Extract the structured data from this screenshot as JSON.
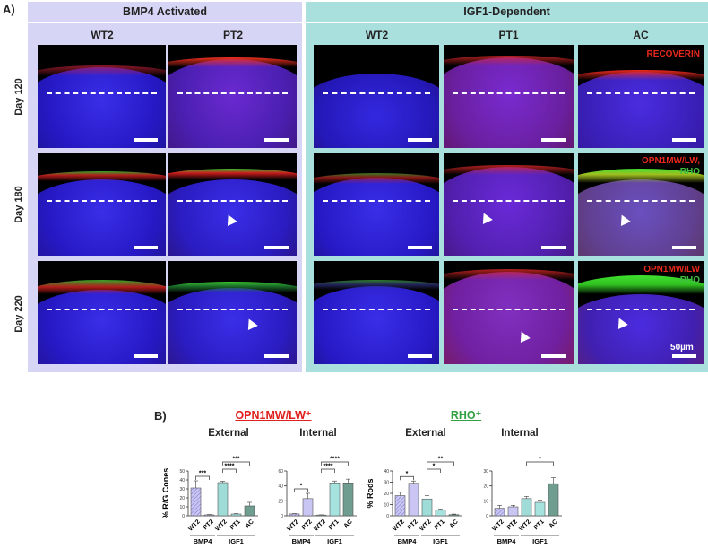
{
  "panel_a": {
    "label": "A)",
    "groups": [
      {
        "name": "BMP4 Activated",
        "columns": [
          "WT2",
          "PT2"
        ]
      },
      {
        "name": "IGF1-Dependent",
        "columns": [
          "WT2",
          "PT1",
          "AC"
        ]
      }
    ],
    "rows": [
      "Day 120",
      "Day 180",
      "Day 220"
    ],
    "markers": {
      "row1": "RECOVERIN",
      "row2_red": "OPN1MW/LW,",
      "row2_green": "RHO",
      "row3_red": "OPN1MW/LW",
      "row3_green": "RHO"
    },
    "scale_bar": "50µm",
    "colors": {
      "bmp4_bg": "#d6d5f5",
      "igf1_bg": "#a9dfdc",
      "nuclei": "#2a1fd0",
      "recoverin": "#e0201c",
      "rho": "#3fd12a"
    }
  },
  "panel_b": {
    "label": "B)",
    "titles": {
      "opn": "OPN1MW/LW⁺",
      "rho": "RHO⁺"
    },
    "subtitles": {
      "external": "External",
      "internal": "Internal"
    },
    "ylabels": {
      "cones": "% R/G Cones",
      "rods": "% Rods"
    },
    "group_labels": {
      "bmp4": "BMP4",
      "igf1": "IGF1"
    }
  },
  "chart_data": [
    {
      "type": "bar",
      "title": "OPN1MW/LW+ External",
      "ylabel": "% R/G Cones",
      "ylim": [
        0,
        50
      ],
      "yticks": [
        0,
        10,
        20,
        30,
        40,
        50
      ],
      "categories": [
        "WT2",
        "PT2",
        "WT2",
        "PT1",
        "AC"
      ],
      "groups": [
        {
          "name": "BMP4",
          "members": [
            0,
            1
          ]
        },
        {
          "name": "IGF1",
          "members": [
            2,
            3,
            4
          ]
        }
      ],
      "values": [
        31,
        1,
        37,
        2,
        11
      ],
      "errors": [
        8,
        0.5,
        1.5,
        0.5,
        4
      ],
      "significance": [
        {
          "from": 0,
          "to": 1,
          "label": "***"
        },
        {
          "from": 2,
          "to": 3,
          "label": "****"
        },
        {
          "from": 2,
          "to": 4,
          "label": "***"
        }
      ]
    },
    {
      "type": "bar",
      "title": "OPN1MW/LW+ Internal",
      "ylabel": "",
      "ylim": [
        0,
        60
      ],
      "yticks": [
        0,
        20,
        40,
        60
      ],
      "categories": [
        "WT2",
        "PT2",
        "WT2",
        "PT1",
        "AC"
      ],
      "groups": [
        {
          "name": "BMP4",
          "members": [
            0,
            1
          ]
        },
        {
          "name": "IGF1",
          "members": [
            2,
            3,
            4
          ]
        }
      ],
      "values": [
        2.5,
        23,
        1,
        44,
        44
      ],
      "errors": [
        0.5,
        7,
        0.3,
        2.5,
        5
      ],
      "significance": [
        {
          "from": 0,
          "to": 1,
          "label": "*"
        },
        {
          "from": 2,
          "to": 3,
          "label": "****"
        },
        {
          "from": 2,
          "to": 4,
          "label": "****"
        }
      ]
    },
    {
      "type": "bar",
      "title": "RHO+ External",
      "ylabel": "% Rods",
      "ylim": [
        0,
        40
      ],
      "yticks": [
        0,
        10,
        20,
        30,
        40
      ],
      "categories": [
        "WT2",
        "PT2",
        "WT2",
        "PT1",
        "AC"
      ],
      "groups": [
        {
          "name": "BMP4",
          "members": [
            0,
            1
          ]
        },
        {
          "name": "IGF1",
          "members": [
            2,
            3,
            4
          ]
        }
      ],
      "values": [
        18,
        29,
        15,
        5,
        1
      ],
      "errors": [
        3,
        2,
        3,
        1,
        0.5
      ],
      "significance": [
        {
          "from": 0,
          "to": 1,
          "label": "*"
        },
        {
          "from": 2,
          "to": 3,
          "label": "*"
        },
        {
          "from": 2,
          "to": 4,
          "label": "**"
        }
      ]
    },
    {
      "type": "bar",
      "title": "RHO+ Internal",
      "ylabel": "",
      "ylim": [
        0,
        30
      ],
      "yticks": [
        0,
        10,
        20,
        30
      ],
      "categories": [
        "WT2",
        "PT2",
        "WT2",
        "PT1",
        "AC"
      ],
      "groups": [
        {
          "name": "BMP4",
          "members": [
            0,
            1
          ]
        },
        {
          "name": "IGF1",
          "members": [
            2,
            3,
            4
          ]
        }
      ],
      "values": [
        5,
        6,
        11.5,
        9,
        21.5
      ],
      "errors": [
        2,
        1,
        1.5,
        1.5,
        4
      ],
      "significance": [
        {
          "from": 2,
          "to": 4,
          "label": "*"
        }
      ]
    }
  ]
}
